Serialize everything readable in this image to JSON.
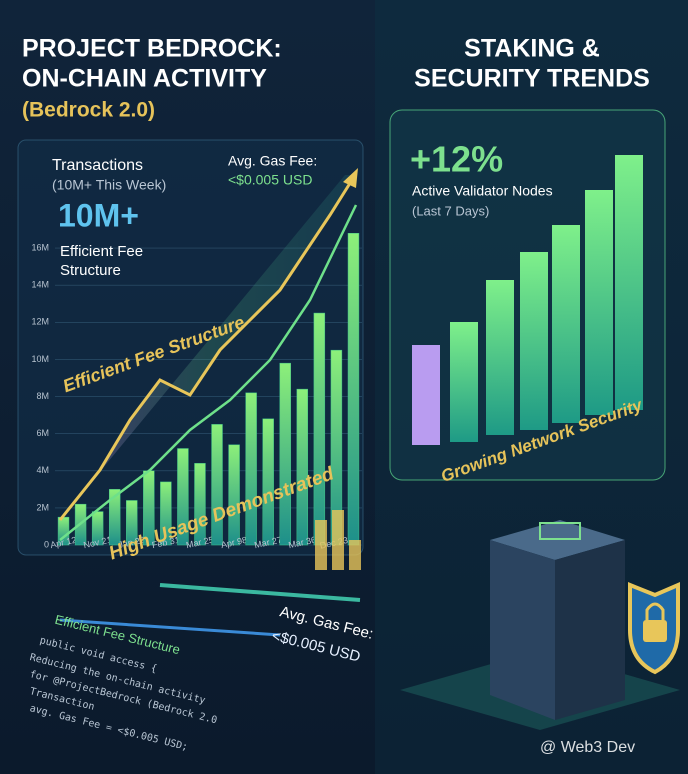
{
  "left": {
    "title": [
      "PROJECT BEDROCK:",
      "ON-CHAIN ACTIVITY"
    ],
    "subtitle": "(Bedrock 2.0)",
    "stat_label": "Transactions",
    "stat_note": "(10M+ This Week)",
    "stat_value": "10M+",
    "stat_caption": [
      "Efficient Fee",
      "Structure"
    ],
    "fee_label": "Avg. Gas Fee:",
    "fee_value": "<$0.005 USD",
    "overlay": [
      "Efficient Fee Structure",
      "High Usage Demonstrated"
    ],
    "footer_fee_label": "Avg. Gas Fee:",
    "footer_fee_value": "<$0.005 USD",
    "code_title": "Efficient Fee Structure",
    "code_lines": [
      "public void access {",
      "Reducing the on-chain activity",
      "for @ProjectBedrock (Bedrock 2.0",
      "Transaction",
      "avg. Gas Fee = <$0.005 USD;"
    ]
  },
  "chart_data": {
    "type": "bar",
    "categories": [
      "Apr 12",
      null,
      "Nov 21",
      null,
      "Jan 23",
      null,
      "Feb 31",
      null,
      "Mar 25",
      null,
      "Apr 98",
      null,
      "Mar 27",
      null,
      "Mar 36",
      null,
      "Dec 230",
      null
    ],
    "values": [
      1500000,
      2200000,
      1800000,
      3000000,
      2400000,
      4000000,
      3400000,
      5200000,
      4400000,
      6500000,
      5400000,
      8200000,
      6800000,
      9800000,
      8400000,
      12500000,
      10500000,
      16800000
    ],
    "color": "#3fc48a",
    "ylim": [
      0,
      18000000
    ],
    "yticks": [
      0,
      {
        "value": 2000000,
        "label": "2M"
      },
      {
        "value": 4000000,
        "label": "4M"
      },
      {
        "value": 6000000,
        "label": "6M"
      },
      {
        "value": 8000000,
        "label": "8M"
      },
      {
        "value": 10000000,
        "label": "10M"
      },
      {
        "value": 12000000,
        "label": "12M"
      },
      {
        "value": 14000000,
        "label": "14M"
      },
      {
        "value": 16000000,
        "label": "16M"
      }
    ],
    "grid": true
  },
  "right": {
    "title": [
      "STAKING &",
      "SECURITY TRENDS"
    ],
    "change": "+12%",
    "label": "Active Validator Nodes",
    "note": "(Last 7 Days)",
    "overlay": "Growing Network Security"
  },
  "watermark": "@ Web3 Dev"
}
